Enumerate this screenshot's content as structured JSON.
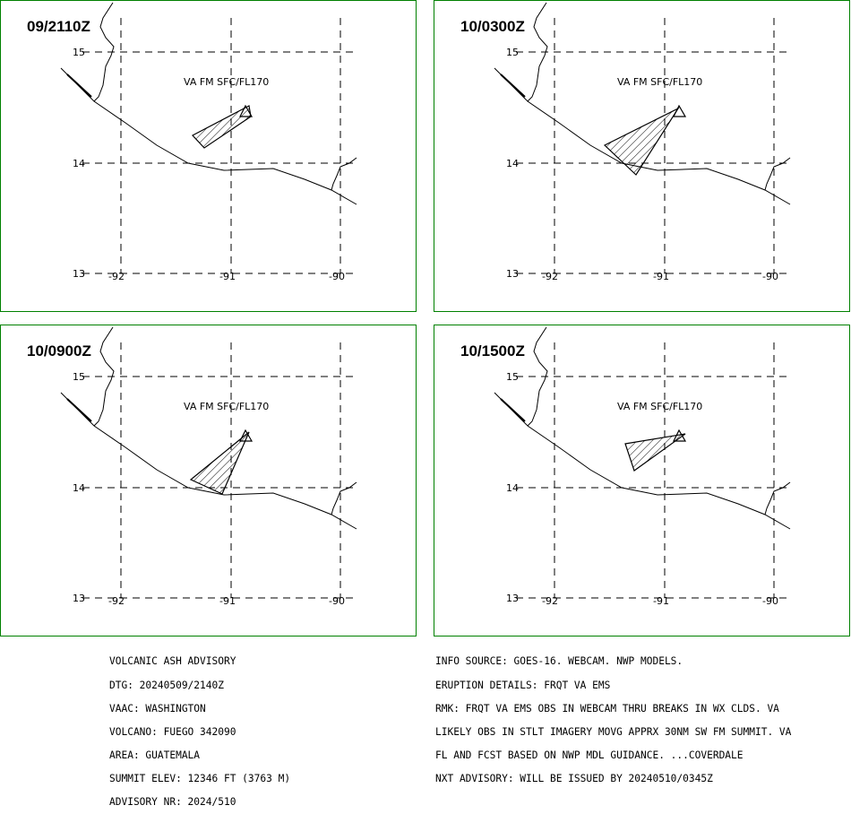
{
  "panels": [
    {
      "time": "09/2110Z",
      "va_label": "VA FM SFC/FL170"
    },
    {
      "time": "10/0300Z",
      "va_label": "VA FM SFC/FL170"
    },
    {
      "time": "10/0900Z",
      "va_label": "VA FM SFC/FL170"
    },
    {
      "time": "10/1500Z",
      "va_label": "VA FM SFC/FL170"
    }
  ],
  "grid": {
    "lat_labels": [
      "15",
      "14",
      "13"
    ],
    "lon_labels": [
      "-92",
      "-91",
      "-90"
    ]
  },
  "advisory_left": [
    "VOLCANIC ASH ADVISORY",
    "DTG: 20240509/2140Z",
    "VAAC: WASHINGTON",
    "VOLCANO: FUEGO 342090",
    "AREA: GUATEMALA",
    "SUMMIT ELEV: 12346 FT (3763 M)",
    "ADVISORY NR: 2024/510"
  ],
  "advisory_right": [
    "INFO SOURCE: GOES-16. WEBCAM. NWP MODELS.",
    "ERUPTION DETAILS: FRQT VA EMS",
    "RMK: FRQT VA EMS OBS IN WEBCAM THRU BREAKS IN WX CLDS. VA",
    "LIKELY OBS IN STLT IMAGERY MOVG APPRX 30NM SW FM SUMMIT. VA",
    "FL AND FCST BASED ON NWP MDL GUIDANCE. ...COVERDALE",
    "NXT ADVISORY: WILL BE ISSUED BY 20240510/0345Z"
  ],
  "colors": {
    "frame": "#008000",
    "lines": "#000000"
  }
}
